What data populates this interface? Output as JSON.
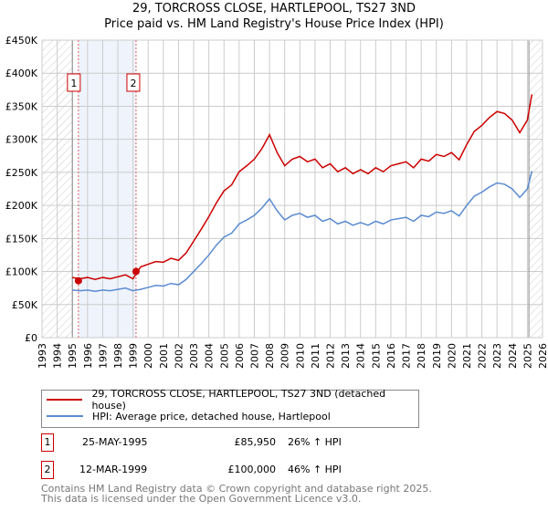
{
  "chart_data": {
    "type": "line",
    "title": "29, TORCROSS CLOSE, HARTLEPOOL, TS27 3ND",
    "subtitle": "Price paid vs. HM Land Registry's House Price Index (HPI)",
    "xlim": [
      1993,
      2026
    ],
    "ylim": [
      0,
      450000
    ],
    "x_ticks": [
      "1993",
      "1994",
      "1995",
      "1996",
      "1997",
      "1998",
      "1999",
      "2000",
      "2001",
      "2002",
      "2003",
      "2004",
      "2005",
      "2006",
      "2007",
      "2008",
      "2009",
      "2010",
      "2011",
      "2012",
      "2013",
      "2014",
      "2015",
      "2016",
      "2017",
      "2018",
      "2019",
      "2020",
      "2021",
      "2022",
      "2023",
      "2024",
      "2025",
      "2026"
    ],
    "y_ticks": [
      "£0",
      "£50K",
      "£100K",
      "£150K",
      "£200K",
      "£250K",
      "£300K",
      "£350K",
      "£400K",
      "£450K"
    ],
    "grid": true,
    "x": [
      1995.0,
      1995.5,
      1996.0,
      1996.5,
      1997.0,
      1997.5,
      1998.0,
      1998.5,
      1999.0,
      1999.5,
      2000.0,
      2000.5,
      2001.0,
      2001.5,
      2002.0,
      2002.5,
      2003.0,
      2003.5,
      2004.0,
      2004.5,
      2005.0,
      2005.5,
      2006.0,
      2006.5,
      2007.0,
      2007.5,
      2008.0,
      2008.5,
      2009.0,
      2009.5,
      2010.0,
      2010.5,
      2011.0,
      2011.5,
      2012.0,
      2012.5,
      2013.0,
      2013.5,
      2014.0,
      2014.5,
      2015.0,
      2015.5,
      2016.0,
      2016.5,
      2017.0,
      2017.5,
      2018.0,
      2018.5,
      2019.0,
      2019.5,
      2020.0,
      2020.5,
      2021.0,
      2021.5,
      2022.0,
      2022.5,
      2023.0,
      2023.5,
      2024.0,
      2024.5,
      2025.0,
      2025.3
    ],
    "series": [
      {
        "name": "29, TORCROSS CLOSE, HARTLEPOOL, TS27 3ND (detached house)",
        "color": "#cc0000",
        "values": [
          91000,
          89000,
          91000,
          88000,
          91000,
          89000,
          92000,
          95000,
          89000,
          107000,
          111000,
          115000,
          114000,
          120000,
          117000,
          128000,
          146000,
          164000,
          183000,
          204000,
          222000,
          231000,
          251000,
          260000,
          270000,
          286000,
          307000,
          280000,
          260000,
          270000,
          274000,
          266000,
          270000,
          257000,
          263000,
          251000,
          257000,
          248000,
          254000,
          248000,
          257000,
          251000,
          260000,
          263000,
          266000,
          257000,
          270000,
          267000,
          277000,
          274000,
          280000,
          269000,
          292000,
          312000,
          321000,
          333000,
          342000,
          339000,
          329000,
          310000,
          329000,
          368000
        ]
      },
      {
        "name": "HPI: Average price, detached house, Hartlepool",
        "color": "#5b8bd0",
        "values": [
          72000,
          71000,
          72000,
          70000,
          72000,
          71000,
          73000,
          75000,
          71000,
          73000,
          76000,
          79000,
          78000,
          82000,
          80000,
          88000,
          100000,
          112000,
          125000,
          140000,
          152000,
          158000,
          172000,
          178000,
          185000,
          196000,
          210000,
          192000,
          178000,
          185000,
          188000,
          182000,
          185000,
          176000,
          180000,
          172000,
          176000,
          170000,
          174000,
          170000,
          176000,
          172000,
          178000,
          180000,
          182000,
          176000,
          185000,
          183000,
          190000,
          188000,
          192000,
          184000,
          200000,
          214000,
          220000,
          228000,
          234000,
          232000,
          225000,
          212000,
          225000,
          252000
        ]
      }
    ],
    "sales": [
      {
        "id": "1",
        "year": 1995.4,
        "price": 85950,
        "date": "25-MAY-1995",
        "price_label": "£85,950",
        "hpi": "26% ↑ HPI"
      },
      {
        "id": "2",
        "year": 1999.2,
        "price": 100000,
        "date": "12-MAR-1999",
        "price_label": "£100,000",
        "hpi": "46% ↑ HPI"
      }
    ],
    "hatched_before": 1995.0,
    "hatched_after": 2025.1,
    "legend_position": "below"
  },
  "footer": {
    "line1": "Contains HM Land Registry data © Crown copyright and database right 2025.",
    "line2": "This data is licensed under the Open Government Licence v3.0."
  }
}
